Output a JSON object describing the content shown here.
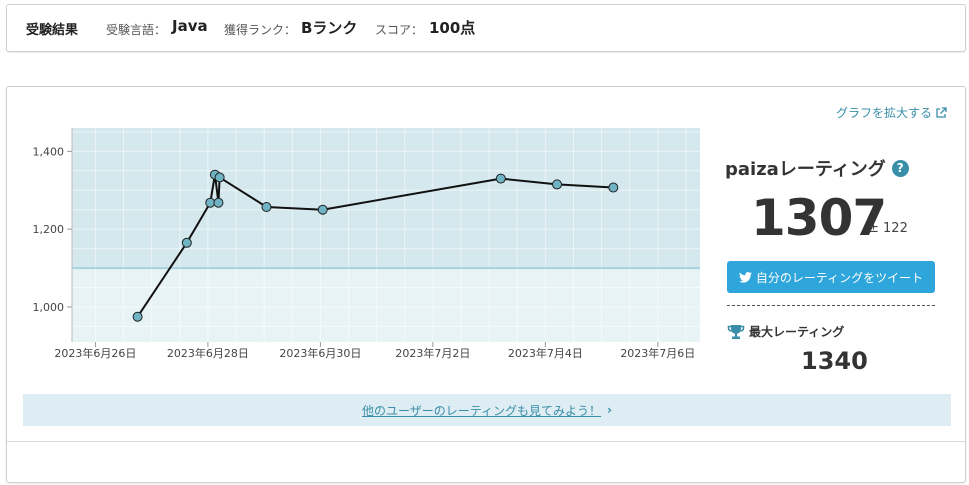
{
  "summary": {
    "title": "受験結果",
    "lang_label": "受験言語：",
    "lang_value": "Java",
    "rank_label": "獲得ランク：",
    "rank_value": "Bランク",
    "score_label": "スコア：",
    "score_value": "100点"
  },
  "chart_link": "グラフを拡大する",
  "rating": {
    "title": "paizaレーティング",
    "value": "1307",
    "pm": "± 122",
    "tweet_label": "自分のレーティングをツイート",
    "max_label": "最大レーティング",
    "max_value": "1340"
  },
  "others_link": "他のユーザーのレーティングも見てみよう！",
  "colors": {
    "upper_band": "#d4e8ee",
    "lower_band": "#e8f3f6",
    "point_fill": "#6fb3c4",
    "threshold_line": "#a9d1de",
    "accent": "#3a8fa8",
    "tweet": "#2fa6db"
  },
  "chart_data": {
    "type": "line",
    "ylim": [
      910,
      1460
    ],
    "y_ticks": [
      1000,
      1200,
      1400
    ],
    "y_tick_labels": [
      "1,000",
      "1,200",
      "1,400"
    ],
    "x_range": [
      "2023-06-25T14:00",
      "2023-07-06T18:00"
    ],
    "x_ticks": [
      "2023-06-26",
      "2023-06-28",
      "2023-06-30",
      "2023-07-02",
      "2023-07-04",
      "2023-07-06"
    ],
    "x_tick_labels": [
      "2023年6月26日",
      "2023年6月28日",
      "2023年6月30日",
      "2023年7月2日",
      "2023年7月4日",
      "2023年7月6日"
    ],
    "band_threshold": 1100,
    "points": [
      {
        "x": "2023-06-26T18:00",
        "y": 975
      },
      {
        "x": "2023-06-27T15:00",
        "y": 1165
      },
      {
        "x": "2023-06-28T01:00",
        "y": 1268
      },
      {
        "x": "2023-06-28T03:00",
        "y": 1340
      },
      {
        "x": "2023-06-28T04:30",
        "y": 1268
      },
      {
        "x": "2023-06-28T05:00",
        "y": 1333
      },
      {
        "x": "2023-06-29T01:00",
        "y": 1257
      },
      {
        "x": "2023-06-30T01:00",
        "y": 1250
      },
      {
        "x": "2023-07-03T05:00",
        "y": 1330
      },
      {
        "x": "2023-07-04T05:00",
        "y": 1315
      },
      {
        "x": "2023-07-05T05:00",
        "y": 1307
      }
    ]
  }
}
